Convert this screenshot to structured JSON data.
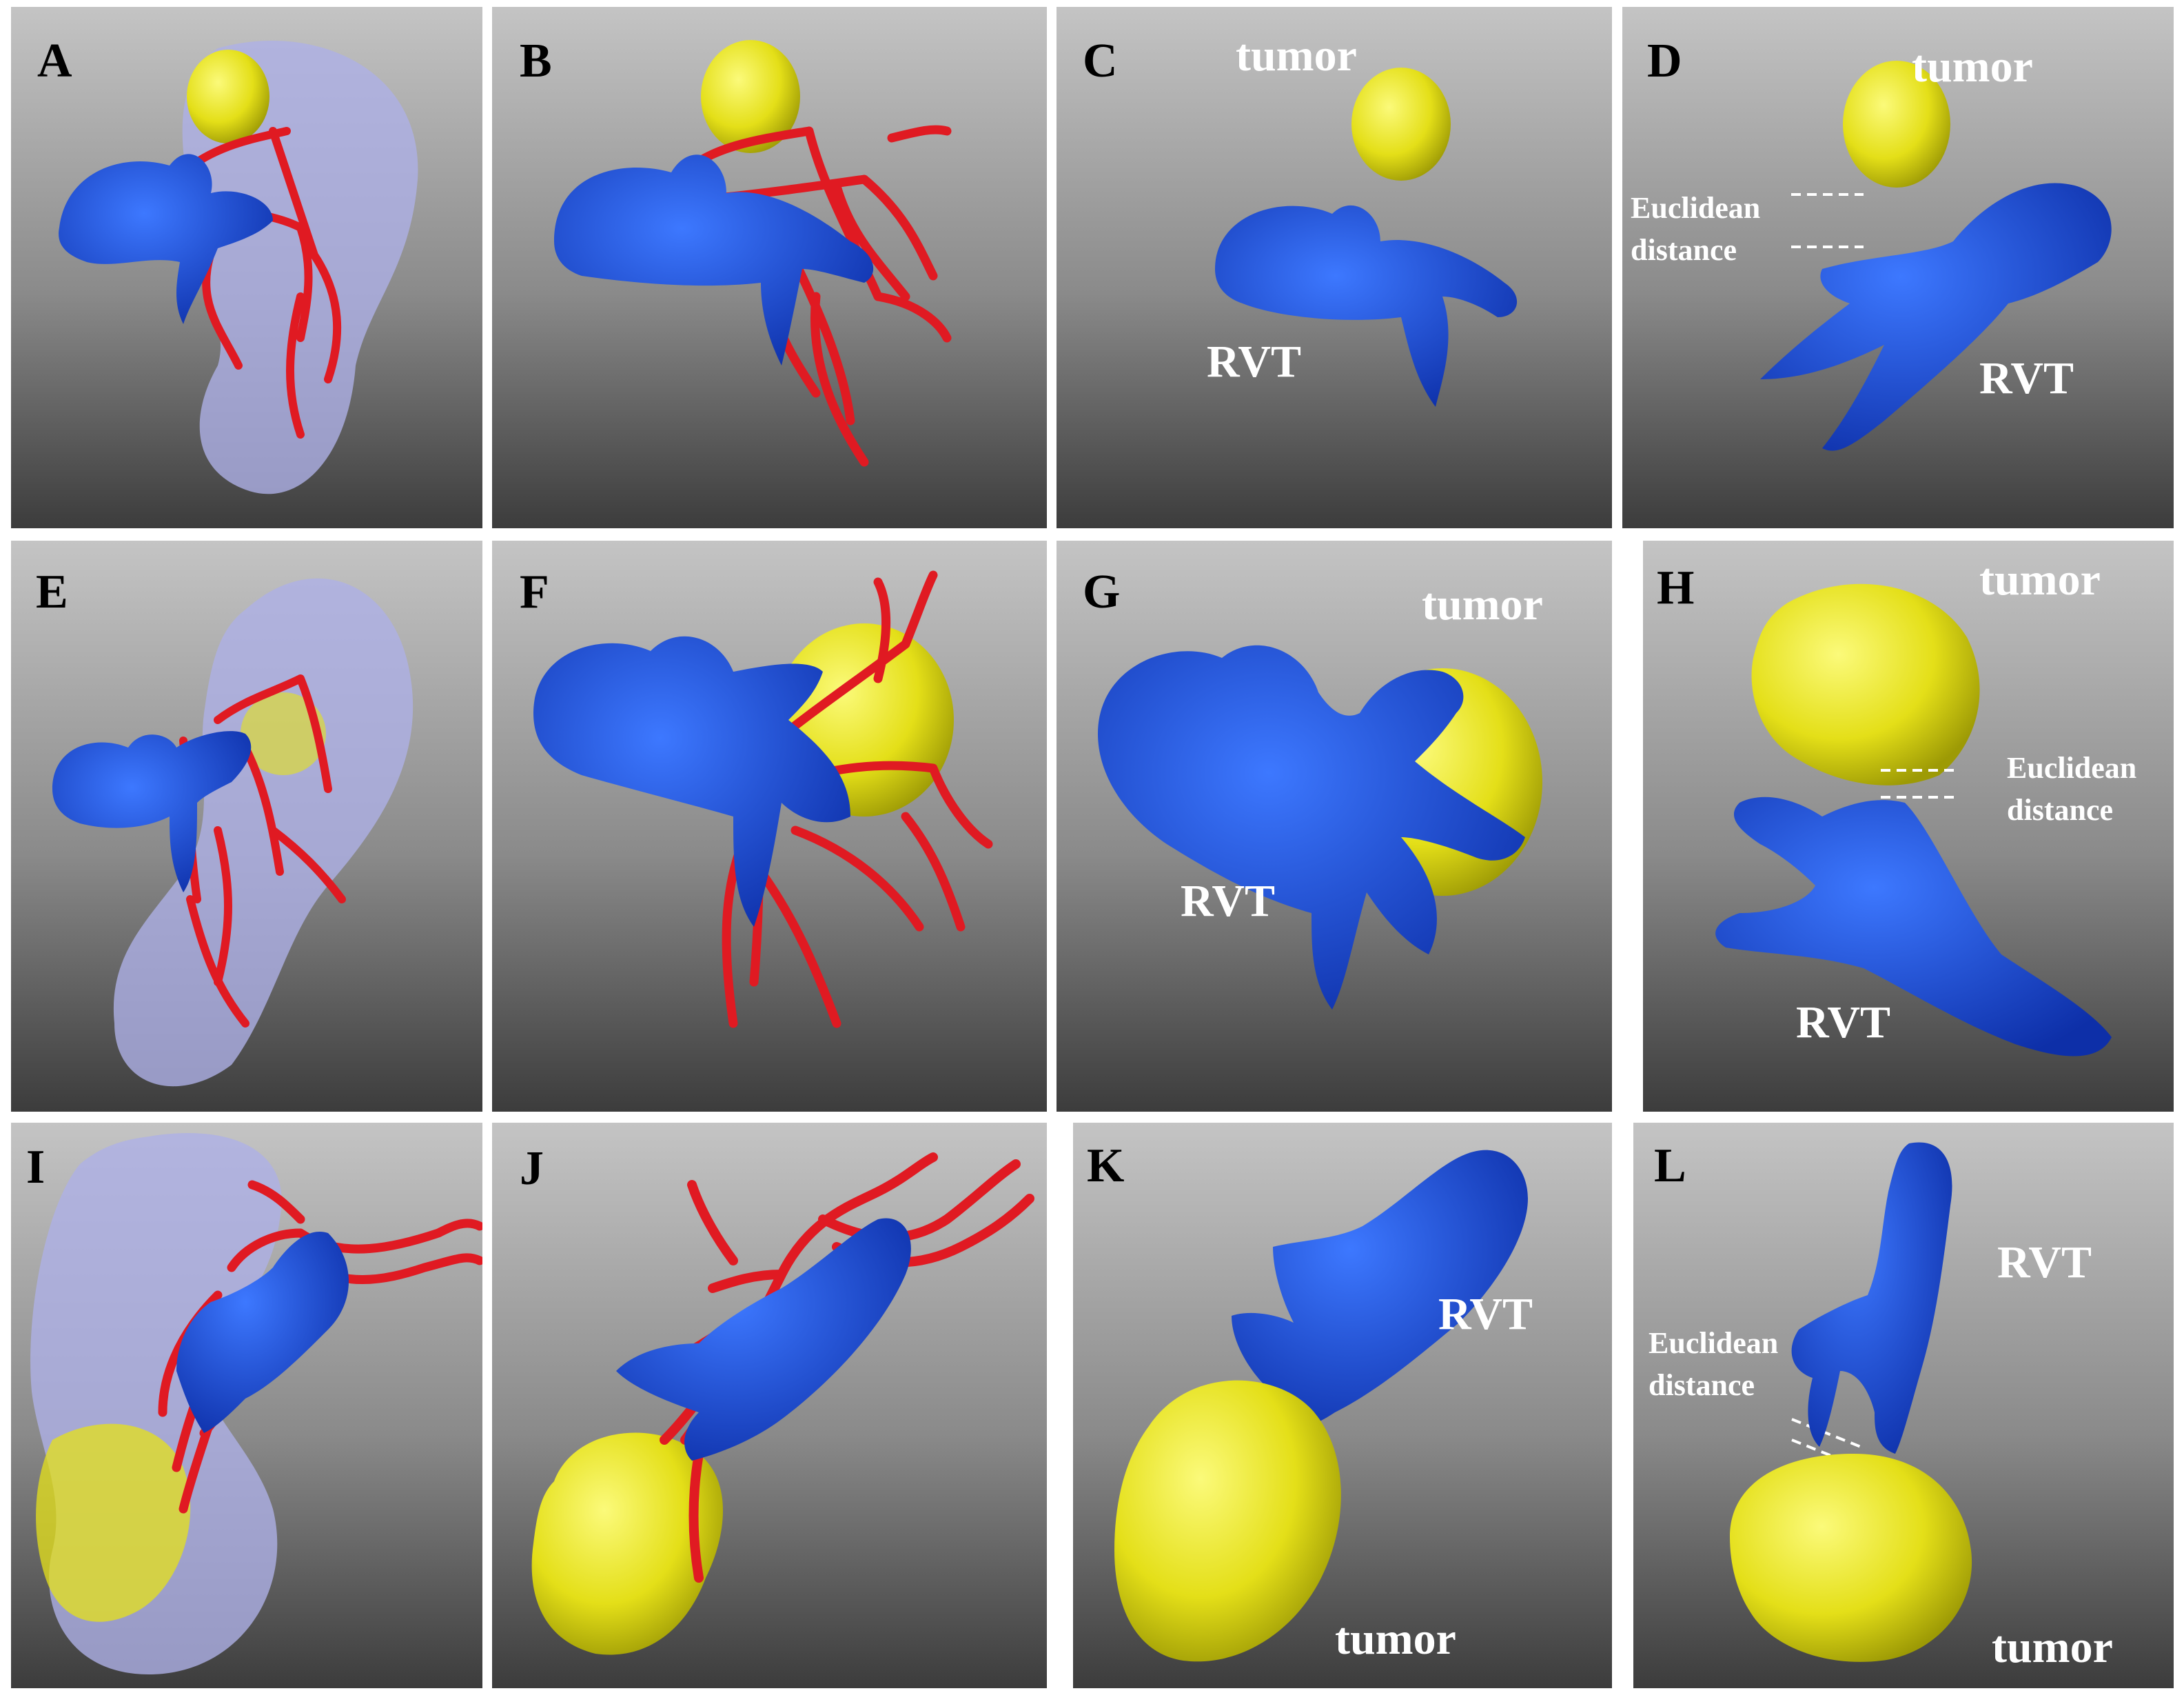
{
  "figure": {
    "panels": [
      {
        "label": "A"
      },
      {
        "label": "B"
      },
      {
        "label": "C",
        "tumor": "tumor",
        "rvt": "RVT"
      },
      {
        "label": "D",
        "tumor": "tumor",
        "rvt": "RVT",
        "distance": "Euclidean distance"
      },
      {
        "label": "E"
      },
      {
        "label": "F"
      },
      {
        "label": "G",
        "tumor": "tumor",
        "rvt": "RVT"
      },
      {
        "label": "H",
        "tumor": "tumor",
        "rvt": "RVT",
        "distance": "Euclidean distance"
      },
      {
        "label": "I"
      },
      {
        "label": "J"
      },
      {
        "label": "K",
        "tumor": "tumor",
        "rvt": "RVT"
      },
      {
        "label": "L",
        "tumor": "tumor",
        "rvt": "RVT",
        "distance": "Euclidean distance"
      }
    ]
  },
  "colors": {
    "tumor": "#e6e21a",
    "thrombus": "#1a52d6",
    "artery": "#e01a22",
    "kidney": "#aeb0e6"
  }
}
